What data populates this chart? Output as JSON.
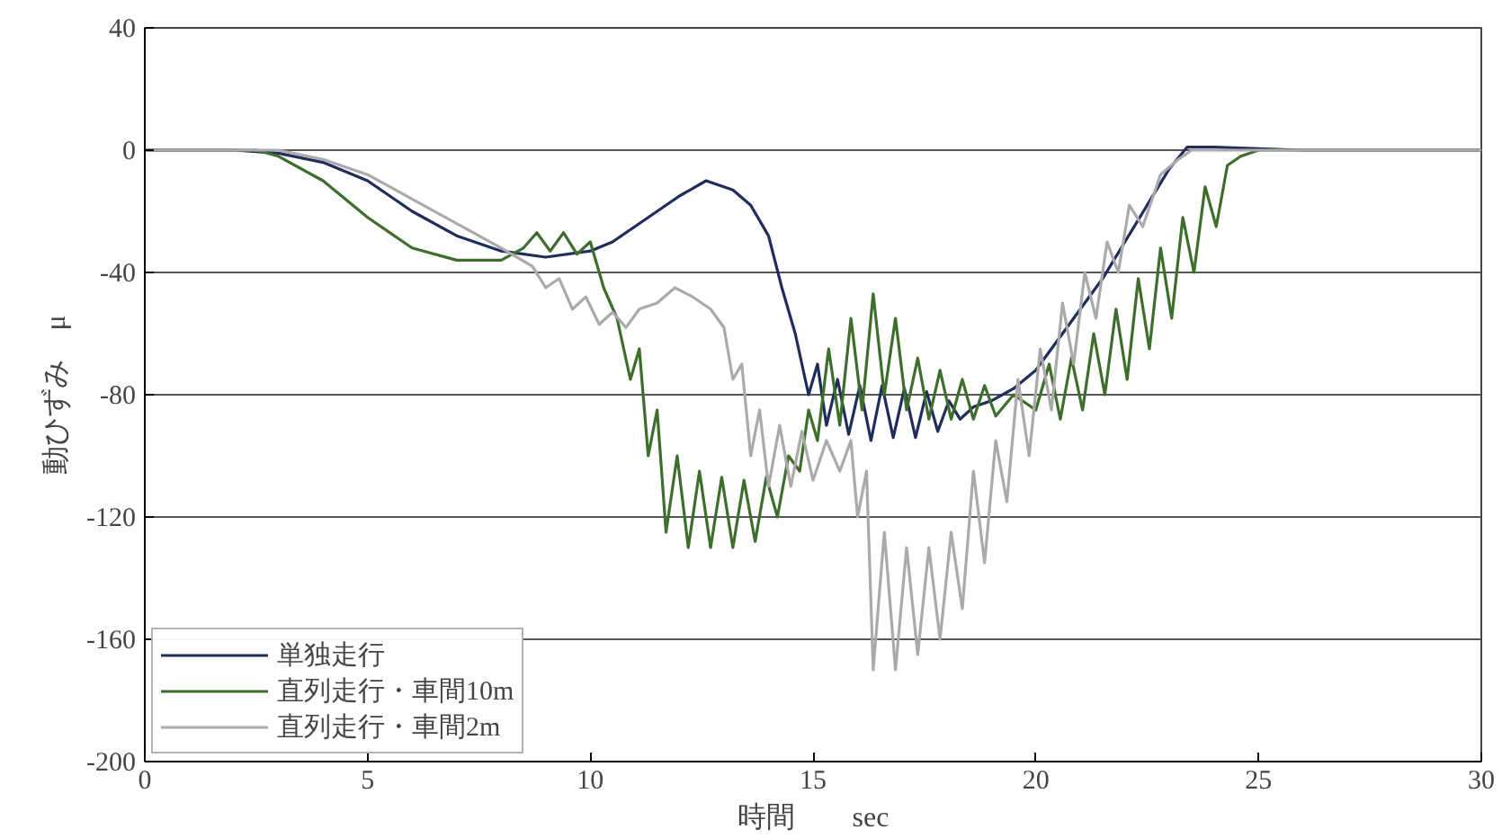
{
  "chart_data": {
    "type": "line",
    "xlabel": "時間　　sec",
    "ylabel": "動ひずみ　μ",
    "xlim": [
      0,
      30
    ],
    "xticks": [
      0,
      5,
      10,
      15,
      20,
      25,
      30
    ],
    "ylim": [
      -200,
      40
    ],
    "yticks": [
      -200,
      -160,
      -120,
      -80,
      -40,
      0,
      40
    ],
    "grid": "y",
    "legend": "bottom left",
    "line_style": "solid",
    "series": [
      {
        "name": "単独走行",
        "color": "#1f2d5c",
        "x": [
          0,
          2,
          3,
          4,
          5,
          6,
          7,
          8,
          9,
          10,
          10.5,
          11,
          11.5,
          12,
          12.6,
          13.2,
          13.6,
          14,
          14.3,
          14.6,
          14.9,
          15.1,
          15.3,
          15.55,
          15.8,
          16.05,
          16.3,
          16.55,
          16.8,
          17.05,
          17.3,
          17.55,
          17.8,
          18.05,
          18.3,
          18.6,
          19,
          19.5,
          20,
          20.5,
          21,
          21.5,
          22,
          22.5,
          23,
          23.4,
          24,
          26,
          30
        ],
        "values": [
          0,
          0,
          -1,
          -4,
          -10,
          -20,
          -28,
          -33,
          -35,
          -33,
          -30,
          -25,
          -20,
          -15,
          -10,
          -13,
          -18,
          -28,
          -45,
          -60,
          -80,
          -70,
          -90,
          -75,
          -93,
          -77,
          -95,
          -77,
          -94,
          -78,
          -94,
          -79,
          -92,
          -82,
          -88,
          -84,
          -82,
          -78,
          -72,
          -62,
          -52,
          -42,
          -30,
          -18,
          -6,
          1,
          1,
          0,
          0
        ]
      },
      {
        "name": "直列走行・車間10m",
        "color": "#3d6e2c",
        "x": [
          0,
          2.5,
          3,
          4,
          5,
          6,
          7,
          8,
          8.5,
          8.8,
          9.1,
          9.4,
          9.7,
          10,
          10.3,
          10.6,
          10.9,
          11.1,
          11.3,
          11.5,
          11.7,
          11.95,
          12.2,
          12.45,
          12.7,
          12.95,
          13.2,
          13.45,
          13.7,
          13.95,
          14.2,
          14.45,
          14.7,
          14.9,
          15.1,
          15.35,
          15.6,
          15.85,
          16.1,
          16.35,
          16.6,
          16.85,
          17.1,
          17.35,
          17.6,
          17.85,
          18.1,
          18.35,
          18.6,
          18.85,
          19.1,
          19.5,
          20,
          20.3,
          20.55,
          20.8,
          21.05,
          21.3,
          21.55,
          21.8,
          22.05,
          22.3,
          22.55,
          22.8,
          23.05,
          23.3,
          23.55,
          23.8,
          24.05,
          24.3,
          24.6,
          25,
          30
        ],
        "values": [
          0,
          0,
          -2,
          -10,
          -22,
          -32,
          -36,
          -36,
          -32,
          -27,
          -33,
          -27,
          -34,
          -30,
          -45,
          -55,
          -75,
          -65,
          -100,
          -85,
          -125,
          -100,
          -130,
          -105,
          -130,
          -107,
          -130,
          -108,
          -128,
          -107,
          -120,
          -100,
          -105,
          -85,
          -95,
          -65,
          -90,
          -55,
          -85,
          -47,
          -80,
          -55,
          -85,
          -68,
          -88,
          -72,
          -88,
          -75,
          -88,
          -77,
          -87,
          -80,
          -85,
          -70,
          -88,
          -68,
          -85,
          -60,
          -80,
          -52,
          -75,
          -42,
          -65,
          -32,
          -55,
          -22,
          -40,
          -12,
          -25,
          -5,
          -2,
          0,
          0
        ]
      },
      {
        "name": "直列走行・車間2m",
        "color": "#aaaaaa",
        "x": [
          0,
          3,
          4,
          5,
          6,
          7,
          8,
          8.7,
          9,
          9.3,
          9.6,
          9.9,
          10.2,
          10.5,
          10.8,
          11.1,
          11.5,
          11.9,
          12.3,
          12.7,
          13,
          13.2,
          13.4,
          13.6,
          13.8,
          14,
          14.25,
          14.5,
          14.75,
          15,
          15.3,
          15.6,
          15.85,
          16,
          16.2,
          16.35,
          16.6,
          16.85,
          17.1,
          17.35,
          17.6,
          17.85,
          18.1,
          18.35,
          18.6,
          18.85,
          19.1,
          19.35,
          19.6,
          19.85,
          20.1,
          20.35,
          20.6,
          20.85,
          21.1,
          21.35,
          21.6,
          21.85,
          22.1,
          22.4,
          22.8,
          23.2,
          23.5,
          30
        ],
        "values": [
          0,
          0,
          -3,
          -8,
          -16,
          -24,
          -32,
          -38,
          -45,
          -42,
          -52,
          -48,
          -57,
          -53,
          -58,
          -52,
          -50,
          -45,
          -48,
          -52,
          -58,
          -75,
          -70,
          -100,
          -85,
          -110,
          -90,
          -110,
          -92,
          -108,
          -95,
          -105,
          -95,
          -120,
          -105,
          -170,
          -125,
          -170,
          -130,
          -165,
          -130,
          -160,
          -125,
          -150,
          -105,
          -135,
          -95,
          -115,
          -75,
          -100,
          -65,
          -85,
          -50,
          -70,
          -40,
          -55,
          -30,
          -40,
          -18,
          -25,
          -8,
          -3,
          0,
          0
        ]
      }
    ]
  }
}
